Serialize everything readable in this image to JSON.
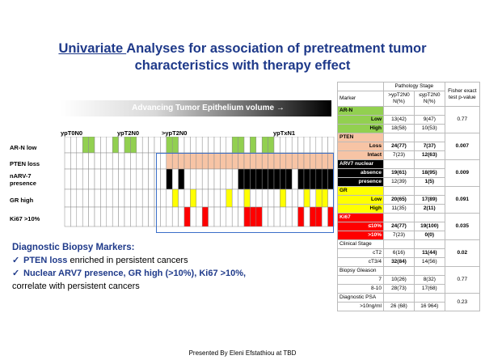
{
  "title": {
    "underlined": "Univariate ",
    "rest": "Analyses for association of pretreatment tumor characteristics with therapy effect"
  },
  "gradient_label": "Advancing  Tumor Epithelium volume →",
  "stages": [
    "ypT0N0",
    "ypT2N0",
    ">ypT2N0",
    "ypTxN1"
  ],
  "heatmap": {
    "rows": [
      {
        "label": "AR-N  low",
        "color": "#92d050",
        "cells": [
          0,
          0,
          0,
          1,
          1,
          0,
          0,
          0,
          1,
          0,
          1,
          1,
          0,
          0,
          0,
          0,
          0,
          1,
          1,
          0,
          0,
          0,
          0,
          0,
          0,
          0,
          0,
          0,
          1,
          1,
          0,
          1,
          0,
          1,
          1,
          0,
          0,
          0,
          0,
          0,
          0,
          0,
          0,
          0,
          0
        ]
      },
      {
        "label": "PTEN loss",
        "color": "#f7c4a5",
        "cells": [
          0,
          0,
          0,
          0,
          0,
          0,
          0,
          0,
          0,
          0,
          0,
          0,
          0,
          0,
          0,
          0,
          0,
          1,
          1,
          1,
          1,
          1,
          1,
          1,
          1,
          1,
          1,
          1,
          1,
          1,
          1,
          1,
          1,
          1,
          1,
          1,
          1,
          1,
          1,
          1,
          1,
          1,
          1,
          1,
          1
        ]
      },
      {
        "label": "nARV-7 presence",
        "color": "#000000",
        "cells": [
          0,
          0,
          0,
          0,
          0,
          0,
          0,
          0,
          0,
          0,
          0,
          0,
          0,
          0,
          0,
          0,
          0,
          1,
          0,
          1,
          0,
          0,
          0,
          0,
          0,
          0,
          0,
          0,
          0,
          1,
          1,
          1,
          1,
          1,
          1,
          1,
          1,
          1,
          0,
          1,
          1,
          1,
          1,
          1,
          1
        ]
      },
      {
        "label": "GR high",
        "color": "#ffff00",
        "cells": [
          0,
          0,
          0,
          0,
          0,
          0,
          0,
          0,
          0,
          0,
          0,
          0,
          0,
          0,
          0,
          0,
          0,
          0,
          1,
          0,
          0,
          1,
          0,
          0,
          0,
          0,
          0,
          1,
          0,
          0,
          1,
          0,
          0,
          0,
          0,
          0,
          1,
          0,
          0,
          0,
          1,
          0,
          1,
          1,
          0
        ]
      },
      {
        "label": "Ki67 >10%",
        "color": "#ff0000",
        "cells": [
          0,
          0,
          0,
          0,
          0,
          0,
          0,
          0,
          0,
          0,
          0,
          0,
          0,
          0,
          0,
          0,
          0,
          0,
          0,
          0,
          1,
          0,
          0,
          1,
          0,
          0,
          0,
          0,
          0,
          0,
          1,
          1,
          1,
          0,
          0,
          0,
          0,
          0,
          0,
          1,
          0,
          1,
          1,
          0,
          1
        ]
      }
    ]
  },
  "markers": {
    "heading": "Diagnostic Biopsy Markers:",
    "item1_bold": "PTEN loss",
    "item1_rest": " enriched in persistent cancers",
    "item2_bold": "Nuclear ARV7 presence, GR high (>10%), Ki67 >10%,",
    "item2_cont": "correlate with persistent cancers"
  },
  "table": {
    "header": {
      "group": "Pathology Stage",
      "fisher": "Fisher exact test p-value",
      "marker": "Marker",
      "col1": ">ypT2N0 N(%)",
      "col2": "≤ypT2N0 N(%)"
    },
    "rows": [
      {
        "group": "AR-N",
        "color": "#92d050",
        "lines": [
          {
            "label": "Low",
            "c1": "13(42)",
            "c2": "9(47)"
          },
          {
            "label": "High",
            "c1": "18(58)",
            "c2": "10(53)"
          }
        ],
        "p": "0.77",
        "bold": false
      },
      {
        "group": "PTEN",
        "color": "#f7c4a5",
        "lines": [
          {
            "label": "Loss",
            "c1": "24(77)",
            "c2": "7(37)"
          },
          {
            "label": "Intact",
            "c1": "7(23)",
            "c2": "12(63)"
          }
        ],
        "p": "0.007",
        "bold": true
      },
      {
        "group": "ARV7 nuclear",
        "color": "#000000",
        "lines": [
          {
            "label": "absence",
            "c1": "19(61)",
            "c2": "18(95)"
          },
          {
            "label": "presence",
            "c1": "12(39)",
            "c2": "1(5)"
          }
        ],
        "p": "0.009",
        "bold": true
      },
      {
        "group": "GR",
        "color": "#ffff00",
        "lines": [
          {
            "label": "Low",
            "c1": "20(65)",
            "c2": "17(89)"
          },
          {
            "label": "High",
            "c1": "11(35)",
            "c2": "2(11)"
          }
        ],
        "p": "0.091",
        "bold": true
      },
      {
        "group": "Ki67",
        "color": "#ff0000",
        "lines": [
          {
            "label": "≤10%",
            "c1": "24(77)",
            "c2": "19(100)"
          },
          {
            "label": ">10%",
            "c1": "7(23)",
            "c2": "0(0)"
          }
        ],
        "p": "0.035",
        "bold": true
      },
      {
        "group": "Clinical Stage",
        "color": "#ffffff",
        "lines": [
          {
            "label": "cT2",
            "c1": "6(16)",
            "c2": "11(44)"
          },
          {
            "label": "cT3/4",
            "c1": "32(84)",
            "c2": "14(56)"
          }
        ],
        "p": "0.02",
        "bold": true
      },
      {
        "group": "Biopsy Gleason",
        "color": "#ffffff",
        "lines": [
          {
            "label": "7",
            "c1": "10(26)",
            "c2": "8(32)"
          },
          {
            "label": "8-10",
            "c1": "28(73)",
            "c2": "17(68)"
          }
        ],
        "p": "0.77",
        "bold": false
      },
      {
        "group": "Diagnostic PSA",
        "color": "#ffffff",
        "lines": [
          {
            "label": ">10ng/ml",
            "c1": "26 (68)",
            "c2": "16 964)"
          }
        ],
        "p": "0.23",
        "bold": false
      }
    ]
  },
  "footer": "Presented By Eleni Efstathiou at TBD"
}
